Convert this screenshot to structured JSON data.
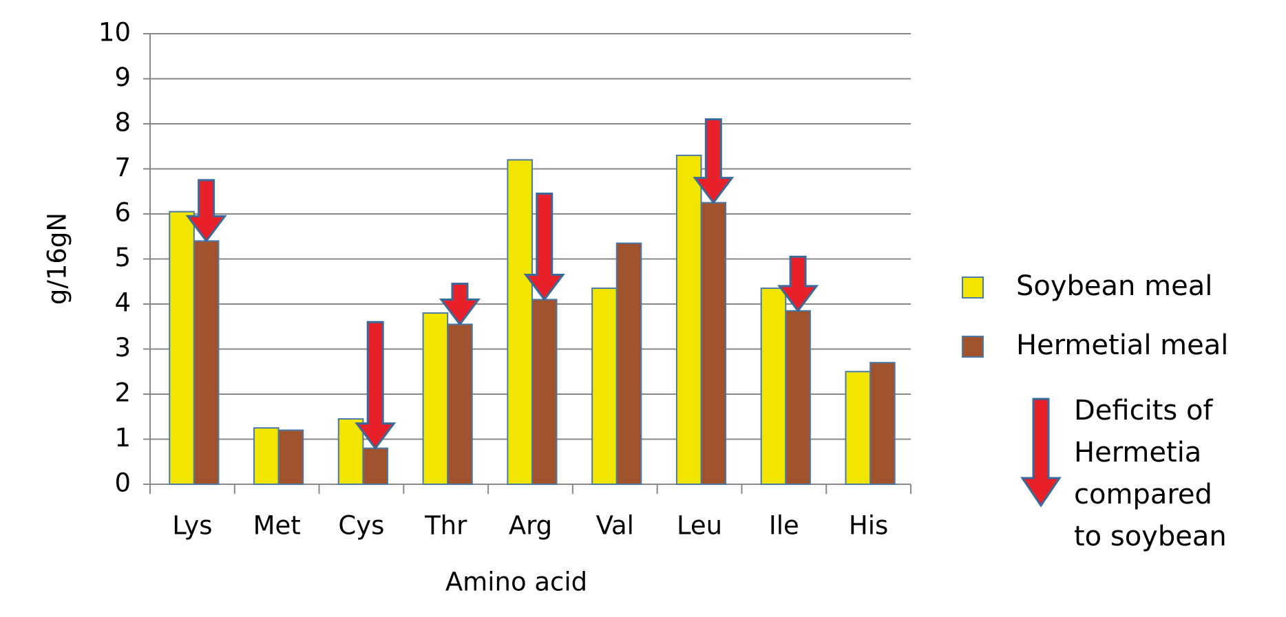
{
  "chart_data": {
    "type": "bar",
    "x_label": "Amino acid",
    "y_label": "g/16gN",
    "categories": [
      "Lys",
      "Met",
      "Cys",
      "Thr",
      "Arg",
      "Val",
      "Leu",
      "Ile",
      "His"
    ],
    "series": [
      {
        "name": "Soybean meal",
        "color": "#f2e600",
        "values": [
          6.05,
          1.25,
          1.45,
          3.8,
          7.2,
          4.35,
          7.3,
          4.35,
          2.5
        ]
      },
      {
        "name": "Hermetial meal",
        "color": "#a0522d",
        "values": [
          5.4,
          1.2,
          0.8,
          3.55,
          4.1,
          5.35,
          6.25,
          3.85,
          2.7
        ]
      }
    ],
    "deficit_arrows": {
      "color": "#e8202a",
      "label_lines": [
        "Deficits of",
        "Hermetia",
        "compared",
        "to soybean"
      ],
      "tops": [
        6.75,
        null,
        3.6,
        4.45,
        6.45,
        null,
        8.1,
        5.05,
        null
      ]
    },
    "ylim": [
      0,
      10
    ],
    "yticks": [
      0,
      1,
      2,
      3,
      4,
      5,
      6,
      7,
      8,
      9,
      10
    ],
    "grid": true
  }
}
